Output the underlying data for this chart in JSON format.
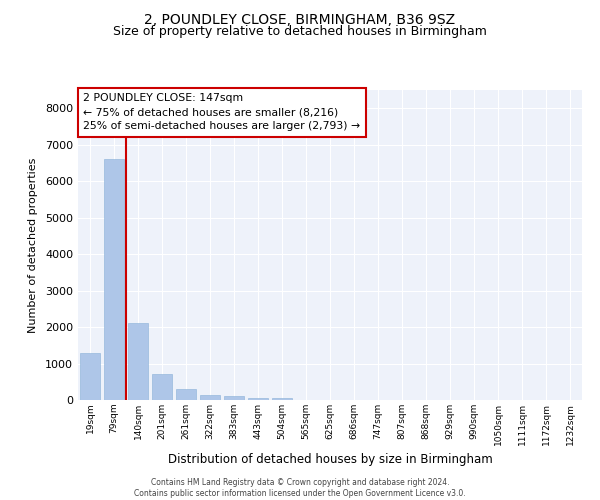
{
  "title1": "2, POUNDLEY CLOSE, BIRMINGHAM, B36 9SZ",
  "title2": "Size of property relative to detached houses in Birmingham",
  "xlabel": "Distribution of detached houses by size in Birmingham",
  "ylabel": "Number of detached properties",
  "footer1": "Contains HM Land Registry data © Crown copyright and database right 2024.",
  "footer2": "Contains public sector information licensed under the Open Government Licence v3.0.",
  "annotation_title": "2 POUNDLEY CLOSE: 147sqm",
  "annotation_line1": "← 75% of detached houses are smaller (8,216)",
  "annotation_line2": "25% of semi-detached houses are larger (2,793) →",
  "bar_categories": [
    "19sqm",
    "79sqm",
    "140sqm",
    "201sqm",
    "261sqm",
    "322sqm",
    "383sqm",
    "443sqm",
    "504sqm",
    "565sqm",
    "625sqm",
    "686sqm",
    "747sqm",
    "807sqm",
    "868sqm",
    "929sqm",
    "990sqm",
    "1050sqm",
    "1111sqm",
    "1172sqm",
    "1232sqm"
  ],
  "bar_values": [
    1300,
    6600,
    2100,
    700,
    290,
    150,
    100,
    60,
    60,
    0,
    0,
    0,
    0,
    0,
    0,
    0,
    0,
    0,
    0,
    0,
    0
  ],
  "bar_color": "#aec6e8",
  "bar_edge_color": "#aec6e8",
  "vline_color": "#cc0000",
  "annotation_box_color": "#cc0000",
  "annotation_text_color": "#000000",
  "bg_color": "#eef2fa",
  "grid_color": "#ffffff",
  "ylim": [
    0,
    8500
  ],
  "yticks": [
    0,
    1000,
    2000,
    3000,
    4000,
    5000,
    6000,
    7000,
    8000
  ]
}
